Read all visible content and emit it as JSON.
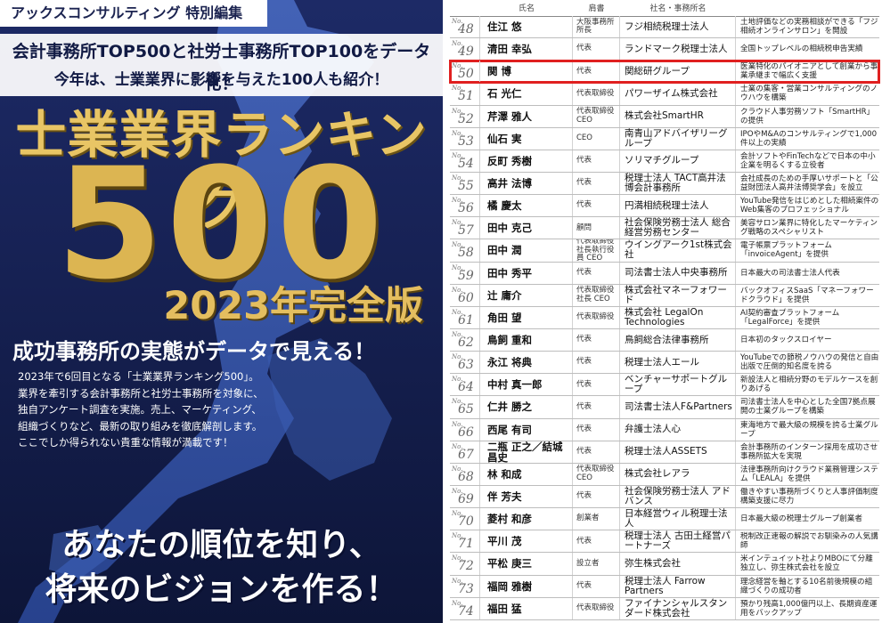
{
  "cover": {
    "series_label": "アックスコンサルティング 特別編集",
    "headline_1": "会計事務所TOP500と社労士事務所TOP100をデータ化！",
    "headline_2": "今年は、士業業界に影響を与えた100人も紹介！",
    "title": "士業業界ランキング",
    "number": "500",
    "edition": "2023年完全版",
    "subtitle": "成功事務所の実態がデータで見える！",
    "intro_lines": [
      "2023年で6回目となる「士業業界ランキング500」。",
      "業界を牽引する会計事務所と社労士事務所を対象に、",
      "独自アンケート調査を実施。売上、マーケティング、",
      "組織づくりなど、最新の取り組みを徹底解剖します。",
      "ここでしか得られない貴重な情報が満載です！"
    ],
    "slogan_1": "あなたの順位を知り、",
    "slogan_2": "将来のビジョンを作る！",
    "colors": {
      "navy": "#172255",
      "gold": "#dcb552",
      "map": "#3e5fb8"
    }
  },
  "table": {
    "headers": {
      "no": "",
      "name": "氏名",
      "title": "肩書",
      "org": "社名・事務所名",
      "desc": ""
    },
    "no_prefix": "No.",
    "highlight_color": "#e02020",
    "rows": [
      {
        "no": "48",
        "name": "住江 悠",
        "title": "大阪事務所 所長",
        "org": "フジ相続税理士法人",
        "desc": "土地評価などの実務相談ができる「フジ相続オンラインサロン」を開設"
      },
      {
        "no": "49",
        "name": "清田 幸弘",
        "title": "代表",
        "org": "ランドマーク税理士法人",
        "desc": "全国トップレベルの相続税申告実績"
      },
      {
        "no": "50",
        "name": "関 博",
        "title": "代表",
        "org": "関総研グループ",
        "desc": "医業特化のパイオニアとして創業から事業承継まで幅広く支援",
        "highlight": true
      },
      {
        "no": "51",
        "name": "石 光仁",
        "title": "代表取締役",
        "org": "パワーザイム株式会社",
        "desc": "士業の集客・営業コンサルティングのノウハウを構築"
      },
      {
        "no": "52",
        "name": "芹澤 雅人",
        "title": "代表取締役 CEO",
        "org": "株式会社SmartHR",
        "desc": "クラウド人事労務ソフト「SmartHR」の提供"
      },
      {
        "no": "53",
        "name": "仙石 実",
        "title": "CEO",
        "org": "南青山アドバイザリーグループ",
        "desc": "IPOやM&Aのコンサルティングで1,000件以上の実績"
      },
      {
        "no": "54",
        "name": "反町 秀樹",
        "title": "代表",
        "org": "ソリマチグループ",
        "desc": "会計ソフトやFinTechなどで日本の中小企業を明るくする立役者"
      },
      {
        "no": "55",
        "name": "高井 法博",
        "title": "代表",
        "org": "税理士法人 TACT高井法博会計事務所",
        "desc": "会社成長のための手厚いサポートと「公益財団法人高井法博奨学会」を設立"
      },
      {
        "no": "56",
        "name": "橘 慶太",
        "title": "代表",
        "org": "円満相続税理士法人",
        "desc": "YouTube発信をはじめとした相続案件のWeb集客のプロフェッショナル"
      },
      {
        "no": "57",
        "name": "田中 克己",
        "title": "顧問",
        "org": "社会保険労務士法人 総合経営労務センター",
        "desc": "美容サロン業界に特化したマーケティング戦略のスペシャリスト"
      },
      {
        "no": "58",
        "name": "田中 潤",
        "title": "代表取締役 社長執行役員 CEO",
        "org": "ウイングアーク1st株式会社",
        "desc": "電子帳票プラットフォーム「invoiceAgent」を提供"
      },
      {
        "no": "59",
        "name": "田中 秀平",
        "title": "代表",
        "org": "司法書士法人中央事務所",
        "desc": "日本最大の司法書士法人代表"
      },
      {
        "no": "60",
        "name": "辻 庸介",
        "title": "代表取締役 社長 CEO",
        "org": "株式会社マネーフォワード",
        "desc": "バックオフィスSaaS「マネーフォワードクラウド」を提供"
      },
      {
        "no": "61",
        "name": "角田 望",
        "title": "代表取締役",
        "org": "株式会社 LegalOn Technologies",
        "desc": "AI契約審査プラットフォーム「LegalForce」を提供"
      },
      {
        "no": "62",
        "name": "鳥飼 重和",
        "title": "代表",
        "org": "鳥飼総合法律事務所",
        "desc": "日本初のタックスロイヤー"
      },
      {
        "no": "63",
        "name": "永江 将典",
        "title": "代表",
        "org": "税理士法人エール",
        "desc": "YouTubeでの節税ノウハウの発信と自由出版で圧倒的知名度を誇る"
      },
      {
        "no": "64",
        "name": "中村 真一郎",
        "title": "代表",
        "org": "ベンチャーサポートグループ",
        "desc": "新設法人と相続分野のモデルケースを創りあげる"
      },
      {
        "no": "65",
        "name": "仁井 勝之",
        "title": "代表",
        "org": "司法書士法人F&Partners",
        "desc": "司法書士法人を中心とした全国7拠点展開の士業グループを構築"
      },
      {
        "no": "66",
        "name": "西尾 有司",
        "title": "代表",
        "org": "弁護士法人心",
        "desc": "東海地方で最大級の規模を誇る士業グループ"
      },
      {
        "no": "67",
        "name": "二瓶 正之／結城 昌史",
        "title": "代表",
        "org": "税理士法人ASSETS",
        "desc": "会計事務所のインターン採用を成功させ事務所拡大を実現"
      },
      {
        "no": "68",
        "name": "林 和成",
        "title": "代表取締役 CEO",
        "org": "株式会社レアラ",
        "desc": "法律事務所向けクラウド業務管理システム「LEALA」を提供"
      },
      {
        "no": "69",
        "name": "伴 芳夫",
        "title": "代表",
        "org": "社会保険労務士法人 アドバンス",
        "desc": "働きやすい事務所づくりと人事評価制度構築支援に尽力"
      },
      {
        "no": "70",
        "name": "菱村 和彦",
        "title": "創業者",
        "org": "日本経営ウィル税理士法人",
        "desc": "日本最大級の税理士グループ創業者"
      },
      {
        "no": "71",
        "name": "平川 茂",
        "title": "代表",
        "org": "税理士法人 古田土経営パートナーズ",
        "desc": "税制改正速報の解説でお馴染みの人気講師"
      },
      {
        "no": "72",
        "name": "平松 庚三",
        "title": "設立者",
        "org": "弥生株式会社",
        "desc": "米インテュイット社よりMBOにて分離独立し、弥生株式会社を設立"
      },
      {
        "no": "73",
        "name": "福岡 雅樹",
        "title": "代表",
        "org": "税理士法人 Farrow Partners",
        "desc": "理念経営を軸とする10名前後規模の組織づくりの成功者"
      },
      {
        "no": "74",
        "name": "福田 猛",
        "title": "代表取締役",
        "org": "ファイナンシャルスタンダード株式会社",
        "desc": "預かり残高1,000億円以上、長期資産運用をバックアップ"
      }
    ]
  }
}
